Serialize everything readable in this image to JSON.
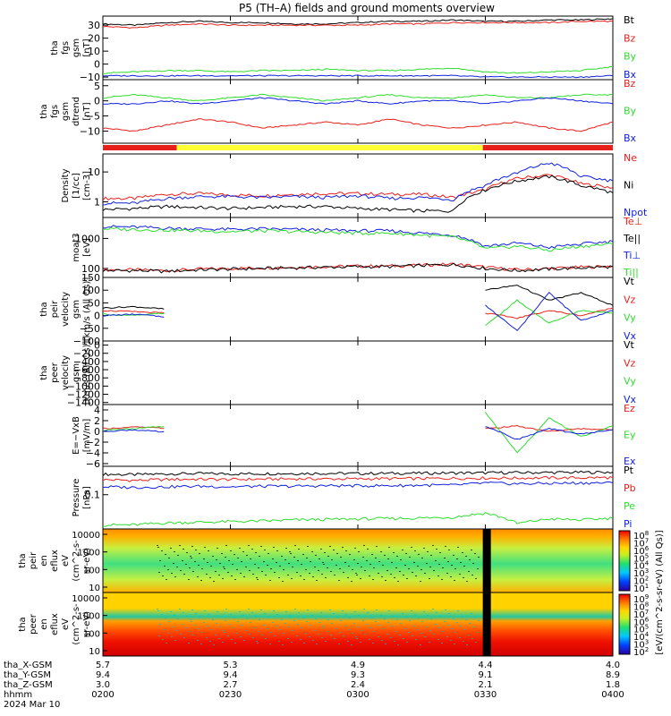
{
  "title": "P5 (TH–A) fields and ground moments overview",
  "colors": {
    "black": "#000000",
    "red": "#e8201c",
    "green": "#2fdc2f",
    "blue": "#1020e0",
    "yellow": "#ffff33"
  },
  "chart_data": {
    "type": "line",
    "panels": [
      {
        "id": "fgs_full",
        "ylabel_lines": [
          "tha",
          "fgs",
          "gsm",
          "[nT]"
        ],
        "ylim": [
          -12,
          37
        ],
        "yticks": [
          -10,
          0,
          10,
          20,
          30
        ],
        "series": [
          {
            "name": "Bt",
            "color": "black",
            "values": [
              31,
              30,
              32,
              33,
              32,
              32,
              31,
              31,
              32,
              33,
              33,
              34,
              33,
              33,
              34,
              34,
              35
            ]
          },
          {
            "name": "Bz",
            "color": "red",
            "values": [
              29,
              28,
              30,
              31,
              30,
              30,
              30,
              30,
              30,
              31,
              31,
              32,
              32,
              32,
              32,
              33,
              33
            ]
          },
          {
            "name": "By",
            "color": "green",
            "values": [
              -7,
              -6,
              -5,
              -5,
              -6,
              -5,
              -5,
              -4,
              -5,
              -5,
              -4,
              -3,
              -6,
              -7,
              -6,
              -5,
              -2
            ]
          },
          {
            "name": "Bx",
            "color": "blue",
            "values": [
              -9,
              -9,
              -9,
              -9,
              -9,
              -9,
              -9,
              -9,
              -9,
              -9,
              -9,
              -9,
              -10,
              -10,
              -10,
              -10,
              -9
            ]
          }
        ]
      },
      {
        "id": "fgs_dtrend",
        "ylabel_lines": [
          "tha",
          "fgs",
          "gsm",
          "dtrend",
          "[nT]"
        ],
        "ylim": [
          -14,
          7
        ],
        "yticks": [
          -10,
          -5,
          0,
          5
        ],
        "series": [
          {
            "name": "Bz",
            "color": "red",
            "values": [
              -9,
              -10,
              -8,
              -6,
              -7,
              -9,
              -8,
              -7,
              -8,
              -6,
              -8,
              -9,
              -8,
              -7,
              -9,
              -10,
              -7
            ]
          },
          {
            "name": "By",
            "color": "green",
            "values": [
              1,
              2,
              1,
              0,
              1,
              2,
              1,
              0,
              1,
              2,
              1,
              1,
              2,
              1,
              1,
              2,
              2
            ]
          },
          {
            "name": "Bx",
            "color": "blue",
            "values": [
              -1,
              -1,
              0,
              -1,
              0,
              1,
              0,
              -1,
              0,
              -1,
              0,
              0,
              -1,
              0,
              1,
              0,
              -1
            ]
          }
        ]
      },
      {
        "id": "density",
        "ylabel_lines": [
          "Density",
          "[1/cc]",
          "[cm-3]"
        ],
        "scale": "log",
        "ylim": [
          0.3,
          40
        ],
        "ytick_labels": [
          "1",
          "10"
        ],
        "series": [
          {
            "name": "Ne",
            "color": "red",
            "values": [
              1.3,
              1.3,
              1.8,
              1.9,
              1.7,
              1.6,
              1.8,
              1.9,
              1.9,
              1.8,
              1.8,
              1.4,
              2.5,
              6,
              8,
              4,
              3
            ]
          },
          {
            "name": "Ni",
            "color": "black",
            "values": [
              0.55,
              0.6,
              0.7,
              0.65,
              0.6,
              0.65,
              0.7,
              0.7,
              0.6,
              0.55,
              0.5,
              0.5,
              2.5,
              5,
              7,
              3.5,
              2
            ]
          },
          {
            "name": "Npot",
            "color": "blue",
            "values": [
              0.9,
              0.9,
              1.3,
              1.5,
              1.5,
              1.4,
              1.5,
              1.4,
              1.6,
              1.3,
              1.4,
              1.2,
              3.5,
              9,
              20,
              7,
              5
            ]
          }
        ]
      },
      {
        "id": "temperature",
        "ylabel_lines": [
          "moat3",
          "[eV]"
        ],
        "scale": "log",
        "ylim": [
          50,
          5000
        ],
        "ytick_labels": [
          "100",
          "1000"
        ],
        "series": [
          {
            "name": "Te⊥",
            "color": "red",
            "values": [
              90,
              90,
              85,
              95,
              100,
              105,
              110,
              115,
              120,
              120,
              130,
              140,
              110,
              90,
              100,
              110,
              120
            ]
          },
          {
            "name": "Te||",
            "color": "black",
            "values": [
              85,
              85,
              80,
              90,
              95,
              100,
              105,
              110,
              115,
              115,
              125,
              135,
              100,
              85,
              95,
              105,
              115
            ]
          },
          {
            "name": "Ti⊥",
            "color": "blue",
            "values": [
              2500,
              2400,
              2200,
              2100,
              2000,
              2100,
              2000,
              1900,
              1800,
              1800,
              1500,
              1300,
              550,
              700,
              500,
              650,
              800
            ]
          },
          {
            "name": "Ti||",
            "color": "green",
            "values": [
              2100,
              2000,
              1900,
              1800,
              1700,
              1800,
              1700,
              1600,
              1500,
              1500,
              1300,
              1100,
              450,
              550,
              400,
              550,
              650
            ]
          }
        ]
      },
      {
        "id": "peir_velocity",
        "ylabel_lines": [
          "tha",
          "peir",
          "velocity",
          "gsm",
          "[km/s (All Qs)]"
        ],
        "ylim": [
          -100,
          150
        ],
        "yticks": [
          -100,
          -50,
          0,
          50,
          100,
          150
        ],
        "series": [
          {
            "name": "Vt",
            "color": "black",
            "values": [
              30,
              35,
              25,
              null,
              null,
              null,
              null,
              null,
              null,
              null,
              null,
              null,
              100,
              120,
              60,
              90,
              40
            ]
          },
          {
            "name": "Vz",
            "color": "red",
            "values": [
              20,
              15,
              10,
              null,
              null,
              null,
              null,
              null,
              null,
              null,
              null,
              null,
              10,
              -10,
              20,
              0,
              30
            ]
          },
          {
            "name": "Vy",
            "color": "green",
            "values": [
              5,
              0,
              10,
              null,
              null,
              null,
              null,
              null,
              null,
              null,
              null,
              null,
              -40,
              60,
              -30,
              20,
              10
            ]
          },
          {
            "name": "Vx",
            "color": "blue",
            "values": [
              0,
              5,
              -5,
              null,
              null,
              null,
              null,
              null,
              null,
              null,
              null,
              null,
              40,
              -60,
              90,
              -20,
              20
            ]
          }
        ]
      },
      {
        "id": "peer_velocity",
        "ylabel_lines": [
          "tha",
          "peer",
          "velocity",
          "gsm",
          "[km/s (All Qs)]"
        ],
        "ylim": [
          -1450,
          100
        ],
        "ytick_labels": [
          "0",
          "−200",
          "−400",
          "−600",
          "−800",
          "−1000",
          "−1200",
          "−1400"
        ],
        "legend": [
          "Vt",
          "Vz",
          "Vy",
          "Vx"
        ]
      },
      {
        "id": "efield",
        "ylabel_lines": [
          "E=−VxB",
          "[mV/m]"
        ],
        "ylim": [
          -6.5,
          5
        ],
        "yticks": [
          -6,
          -4,
          -2,
          0,
          2,
          4
        ],
        "series": [
          {
            "name": "Ez",
            "color": "red",
            "values": [
              0.5,
              0.8,
              0.6,
              null,
              null,
              null,
              null,
              null,
              null,
              null,
              null,
              null,
              0.5,
              1.0,
              0.0,
              0.5,
              0.3
            ]
          },
          {
            "name": "Ey",
            "color": "green",
            "values": [
              0.2,
              0.5,
              1.0,
              null,
              null,
              null,
              null,
              null,
              null,
              null,
              null,
              null,
              3.5,
              -4.0,
              2.5,
              -1.0,
              1.0
            ]
          },
          {
            "name": "Ex",
            "color": "blue",
            "values": [
              0.0,
              0.3,
              -0.2,
              null,
              null,
              null,
              null,
              null,
              null,
              null,
              null,
              null,
              1.0,
              -1.5,
              0.5,
              -0.5,
              0.3
            ]
          }
        ]
      },
      {
        "id": "pressure",
        "ylabel_lines": [
          "Pressure",
          "[nPa]"
        ],
        "scale": "log",
        "ylim": [
          0.005,
          1.2
        ],
        "ytick_labels": [
          "0.1"
        ],
        "series": [
          {
            "name": "Pt",
            "color": "black",
            "values": [
              0.6,
              0.58,
              0.62,
              0.64,
              0.62,
              0.63,
              0.64,
              0.65,
              0.64,
              0.65,
              0.66,
              0.67,
              0.68,
              0.69,
              0.7,
              0.71,
              0.72
            ]
          },
          {
            "name": "Pb",
            "color": "red",
            "values": [
              0.37,
              0.35,
              0.38,
              0.39,
              0.38,
              0.39,
              0.4,
              0.4,
              0.4,
              0.41,
              0.41,
              0.42,
              0.43,
              0.43,
              0.44,
              0.44,
              0.45
            ]
          },
          {
            "name": "Pe",
            "color": "green",
            "values": [
              0.007,
              0.0072,
              0.0085,
              0.009,
              0.0095,
              0.01,
              0.011,
              0.0115,
              0.012,
              0.0125,
              0.013,
              0.014,
              0.02,
              0.008,
              0.012,
              0.011,
              0.013
            ]
          },
          {
            "name": "Pi",
            "color": "blue",
            "values": [
              0.2,
              0.19,
              0.2,
              0.21,
              0.2,
              0.21,
              0.21,
              0.22,
              0.22,
              0.22,
              0.23,
              0.23,
              0.28,
              0.26,
              0.27,
              0.28,
              0.28
            ]
          }
        ]
      },
      {
        "id": "peir_eflux",
        "type": "heatmap",
        "ylabel_lines": [
          "tha",
          "peir",
          "en",
          "eflux",
          "eV",
          "(cm^2-s-",
          "sr-eV)"
        ],
        "ytick_labels": [
          "10",
          "100",
          "1000",
          "10000"
        ],
        "colorbar_labels": [
          "10^8",
          "10^7",
          "10^6",
          "10^5",
          "10^4",
          "10^3",
          "10^2",
          "10^1"
        ],
        "colorbar_title": "[eV/(cm^2-s-sr-eV) (All Qs)]"
      },
      {
        "id": "peer_eflux",
        "type": "heatmap",
        "ylabel_lines": [
          "tha",
          "peer",
          "en",
          "eflux",
          "eV",
          "(cm^2-s-",
          "sr-eV)"
        ],
        "ytick_labels": [
          "10",
          "100",
          "1000",
          "10000"
        ],
        "colorbar_labels": [
          "10^9",
          "10^8",
          "10^7",
          "10^6",
          "10^5",
          "10^4",
          "10^3",
          "10^2"
        ],
        "colorbar_title": "[eV/(cm^2-s-sr-eV) (All Qs)]"
      }
    ],
    "x_axis": {
      "row_labels": [
        "tha_X-GSM",
        "tha_Y-GSM",
        "tha_Z-GSM",
        "hhmm",
        "2024 Mar 10"
      ],
      "ticks": [
        {
          "values": [
            "5.7",
            "9.4",
            "3.0",
            "0200"
          ]
        },
        {
          "values": [
            "5.3",
            "9.4",
            "2.7",
            "0230"
          ]
        },
        {
          "values": [
            "4.9",
            "9.3",
            "2.4",
            "0300"
          ]
        },
        {
          "values": [
            "4.4",
            "9.1",
            "2.1",
            "0330"
          ]
        },
        {
          "values": [
            "4.0",
            "8.9",
            "1.8",
            "0400"
          ]
        }
      ]
    },
    "mode_bar": [
      {
        "from": 0.0,
        "to": 0.145,
        "color": "red"
      },
      {
        "from": 0.145,
        "to": 0.745,
        "color": "yellow"
      },
      {
        "from": 0.745,
        "to": 1.0,
        "color": "red"
      }
    ]
  }
}
